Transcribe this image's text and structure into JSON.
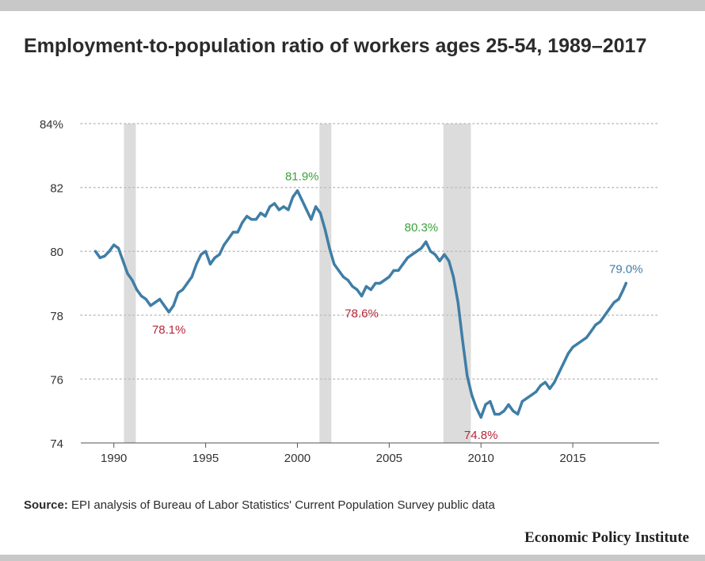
{
  "title": "Employment-to-population ratio of workers ages 25-54, 1989–2017",
  "source": {
    "label": "Source:",
    "text": " EPI analysis of Bureau of Labor Statistics' Current Population Survey public data"
  },
  "brand": "Economic Policy Institute",
  "colors": {
    "line": "#3f7ea6",
    "low_label": "#b5273a",
    "high_label": "#3aa33a",
    "last_label": "#3f7ea6",
    "recession": "#dcdcdc",
    "grid": "#bdbdbd"
  },
  "chart_data": {
    "type": "line",
    "title": "Employment-to-population ratio of workers ages 25-54, 1989–2017",
    "xlabel": "",
    "ylabel": "",
    "xlim": [
      1988.2,
      2019.7
    ],
    "ylim": [
      74,
      84
    ],
    "x_ticks": [
      1990,
      1995,
      2000,
      2005,
      2010,
      2015
    ],
    "y_ticks": [
      {
        "value": 74,
        "label": "74"
      },
      {
        "value": 76,
        "label": "76"
      },
      {
        "value": 78,
        "label": "78"
      },
      {
        "value": 80,
        "label": "80"
      },
      {
        "value": 82,
        "label": "82"
      },
      {
        "value": 84,
        "label": "84%"
      }
    ],
    "grid": "horizontal dotted",
    "recessions": [
      [
        1990.55,
        1991.2
      ],
      [
        2001.2,
        2001.85
      ],
      [
        2007.95,
        2009.45
      ]
    ],
    "series": [
      {
        "x": [
          1989.0,
          1989.25,
          1989.5,
          1989.75,
          1990.0,
          1990.25,
          1990.5,
          1990.75,
          1991.0,
          1991.25,
          1991.5,
          1991.75,
          1992.0,
          1992.25,
          1992.5,
          1992.75,
          1993.0,
          1993.25,
          1993.5,
          1993.75,
          1994.0,
          1994.25,
          1994.5,
          1994.75,
          1995.0,
          1995.25,
          1995.5,
          1995.75,
          1996.0,
          1996.25,
          1996.5,
          1996.75,
          1997.0,
          1997.25,
          1997.5,
          1997.75,
          1998.0,
          1998.25,
          1998.5,
          1998.75,
          1999.0,
          1999.25,
          1999.5,
          1999.75,
          2000.0,
          2000.25,
          2000.5,
          2000.75,
          2001.0,
          2001.25,
          2001.5,
          2001.75,
          2002.0,
          2002.25,
          2002.5,
          2002.75,
          2003.0,
          2003.25,
          2003.5,
          2003.75,
          2004.0,
          2004.25,
          2004.5,
          2004.75,
          2005.0,
          2005.25,
          2005.5,
          2005.75,
          2006.0,
          2006.25,
          2006.5,
          2006.75,
          2007.0,
          2007.25,
          2007.5,
          2007.75,
          2008.0,
          2008.25,
          2008.5,
          2008.75,
          2009.0,
          2009.25,
          2009.5,
          2009.75,
          2010.0,
          2010.25,
          2010.5,
          2010.75,
          2011.0,
          2011.25,
          2011.5,
          2011.75,
          2012.0,
          2012.25,
          2012.5,
          2012.75,
          2013.0,
          2013.25,
          2013.5,
          2013.75,
          2014.0,
          2014.25,
          2014.5,
          2014.75,
          2015.0,
          2015.25,
          2015.5,
          2015.75,
          2016.0,
          2016.25,
          2016.5,
          2016.75,
          2017.0,
          2017.25,
          2017.5,
          2017.75,
          2017.9
        ],
        "y": [
          80.0,
          79.8,
          79.85,
          80.0,
          80.2,
          80.1,
          79.7,
          79.3,
          79.1,
          78.8,
          78.6,
          78.5,
          78.3,
          78.4,
          78.5,
          78.3,
          78.1,
          78.3,
          78.7,
          78.8,
          79.0,
          79.2,
          79.6,
          79.9,
          80.0,
          79.6,
          79.8,
          79.9,
          80.2,
          80.4,
          80.6,
          80.6,
          80.9,
          81.1,
          81.0,
          81.0,
          81.2,
          81.1,
          81.4,
          81.5,
          81.3,
          81.4,
          81.3,
          81.7,
          81.9,
          81.6,
          81.3,
          81.0,
          81.4,
          81.2,
          80.7,
          80.1,
          79.6,
          79.4,
          79.2,
          79.1,
          78.9,
          78.8,
          78.6,
          78.9,
          78.8,
          79.0,
          79.0,
          79.1,
          79.2,
          79.4,
          79.4,
          79.6,
          79.8,
          79.9,
          80.0,
          80.1,
          80.3,
          80.0,
          79.9,
          79.7,
          79.9,
          79.7,
          79.2,
          78.4,
          77.2,
          76.1,
          75.5,
          75.1,
          74.8,
          75.2,
          75.3,
          74.9,
          74.9,
          75.0,
          75.2,
          75.0,
          74.9,
          75.3,
          75.4,
          75.5,
          75.6,
          75.8,
          75.9,
          75.7,
          75.9,
          76.2,
          76.5,
          76.8,
          77.0,
          77.1,
          77.2,
          77.3,
          77.5,
          77.7,
          77.8,
          78.0,
          78.2,
          78.4,
          78.5,
          78.8,
          79.0
        ]
      }
    ],
    "annotations": [
      {
        "x": 1993.0,
        "y": 78.1,
        "text": "78.1%",
        "kind": "low",
        "pos": "below"
      },
      {
        "x": 2000.25,
        "y": 81.9,
        "text": "81.9%",
        "kind": "high",
        "pos": "above"
      },
      {
        "x": 2003.5,
        "y": 78.6,
        "text": "78.6%",
        "kind": "low",
        "pos": "below"
      },
      {
        "x": 2006.75,
        "y": 80.3,
        "text": "80.3%",
        "kind": "high",
        "pos": "above"
      },
      {
        "x": 2010.0,
        "y": 74.8,
        "text": "74.8%",
        "kind": "low",
        "pos": "below"
      },
      {
        "x": 2017.9,
        "y": 79.0,
        "text": "79.0%",
        "kind": "last",
        "pos": "above"
      }
    ]
  }
}
